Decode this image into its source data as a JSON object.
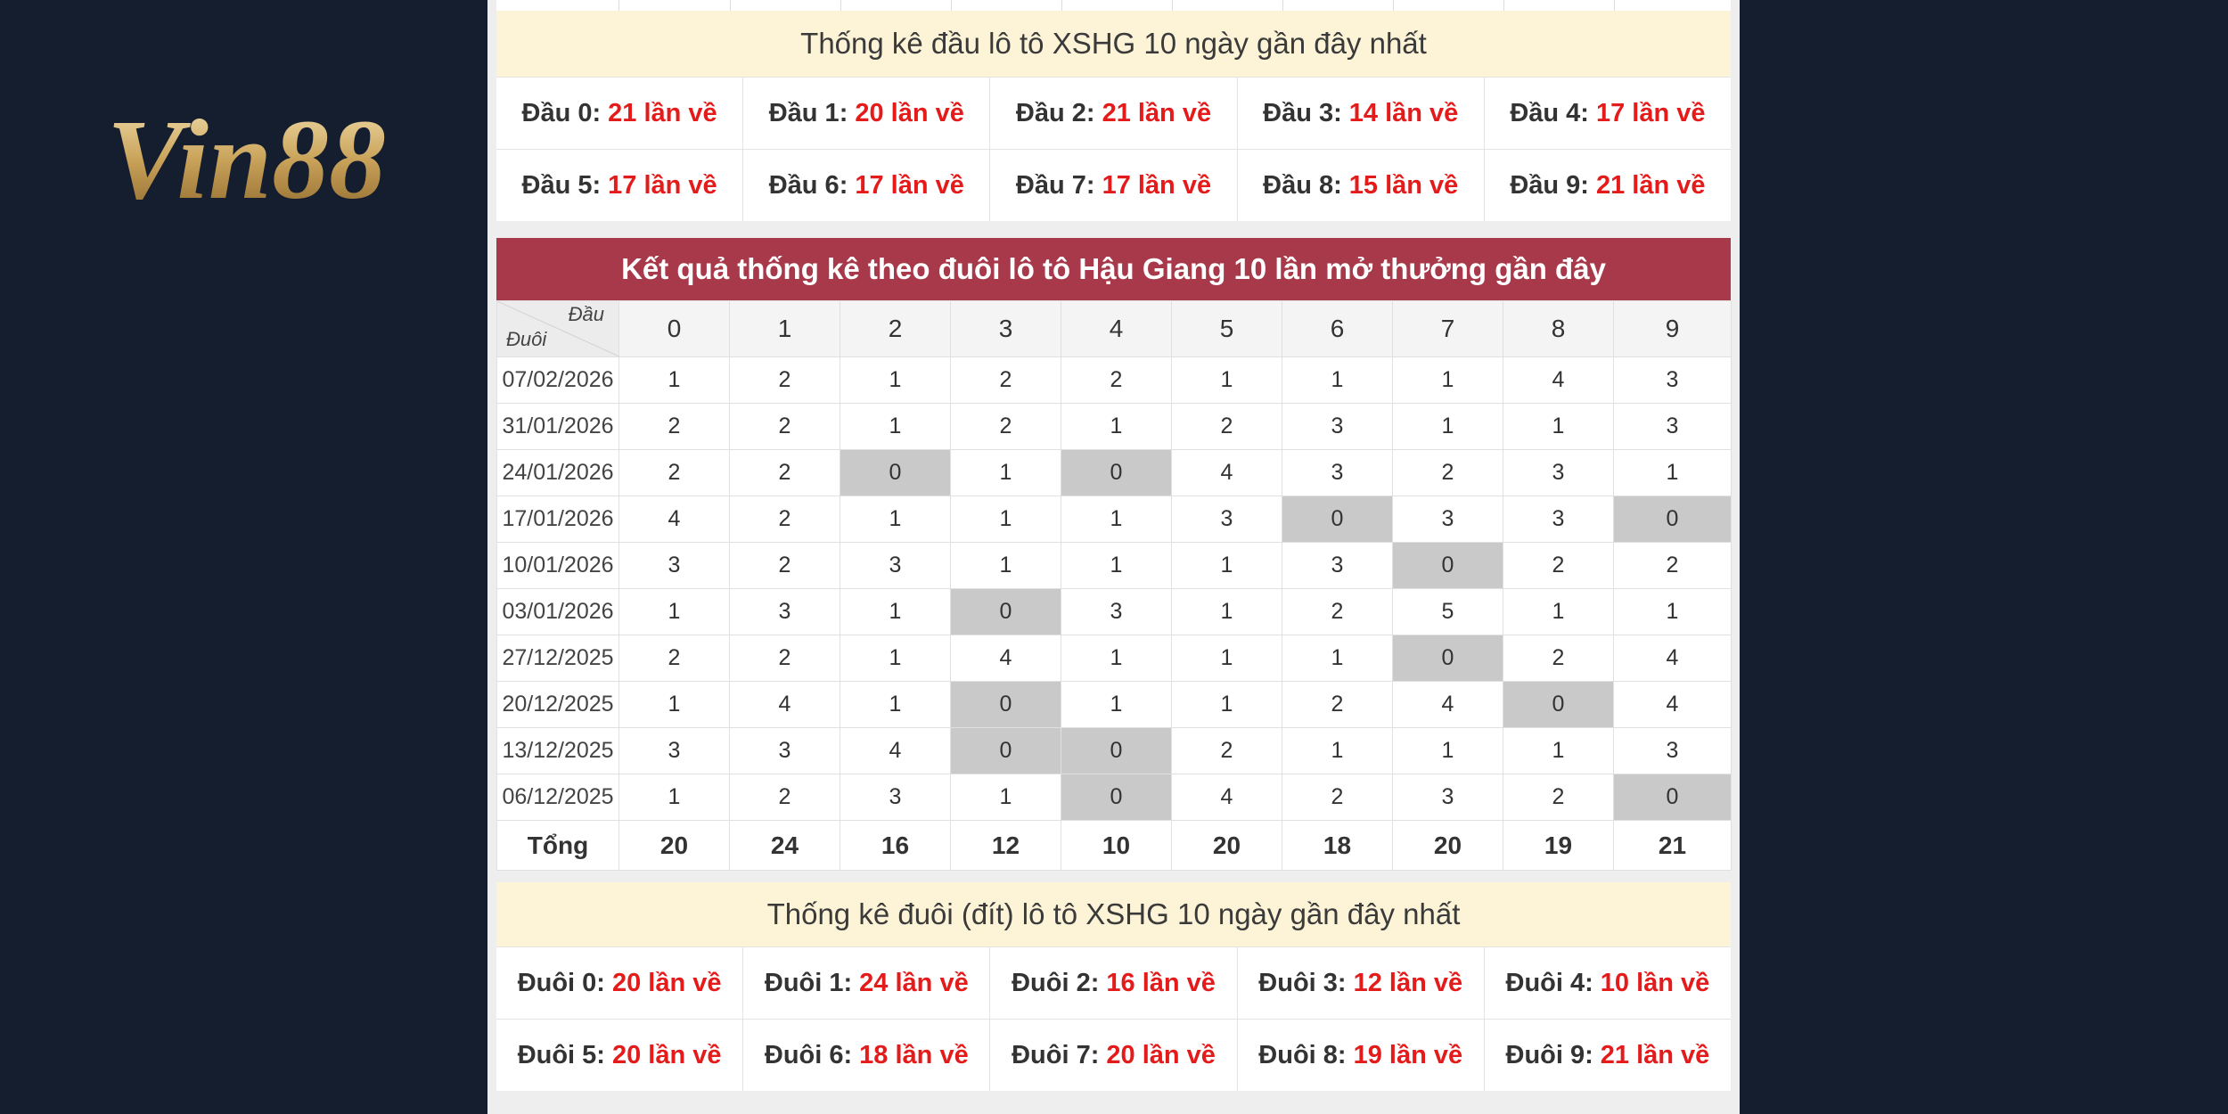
{
  "logo": {
    "text": "Vin88"
  },
  "head_stats": {
    "title": "Thống kê đầu lô tô XSHG 10 ngày gần đây nhất",
    "rows": [
      [
        {
          "label": "Đầu 0:",
          "value": "21 lần về"
        },
        {
          "label": "Đầu 1:",
          "value": "20 lần về"
        },
        {
          "label": "Đầu 2:",
          "value": "21 lần về"
        },
        {
          "label": "Đầu 3:",
          "value": "14 lần về"
        },
        {
          "label": "Đầu 4:",
          "value": "17 lần về"
        }
      ],
      [
        {
          "label": "Đầu 5:",
          "value": "17 lần về"
        },
        {
          "label": "Đầu 6:",
          "value": "17 lần về"
        },
        {
          "label": "Đầu 7:",
          "value": "17 lần về"
        },
        {
          "label": "Đầu 8:",
          "value": "15 lần về"
        },
        {
          "label": "Đầu 9:",
          "value": "21 lần về"
        }
      ]
    ]
  },
  "tail_table": {
    "title": "Kết quả thống kê theo đuôi lô tô Hậu Giang 10 lần mở thưởng gần đây",
    "corner_top": "Đầu",
    "corner_bottom": "Đuôi",
    "columns": [
      "0",
      "1",
      "2",
      "3",
      "4",
      "5",
      "6",
      "7",
      "8",
      "9"
    ],
    "rows": [
      {
        "date": "07/02/2026",
        "values": [
          "1",
          "2",
          "1",
          "2",
          "2",
          "1",
          "1",
          "1",
          "4",
          "3"
        ]
      },
      {
        "date": "31/01/2026",
        "values": [
          "2",
          "2",
          "1",
          "2",
          "1",
          "2",
          "3",
          "1",
          "1",
          "3"
        ]
      },
      {
        "date": "24/01/2026",
        "values": [
          "2",
          "2",
          "0",
          "1",
          "0",
          "4",
          "3",
          "2",
          "3",
          "1"
        ]
      },
      {
        "date": "17/01/2026",
        "values": [
          "4",
          "2",
          "1",
          "1",
          "1",
          "3",
          "0",
          "3",
          "3",
          "0"
        ]
      },
      {
        "date": "10/01/2026",
        "values": [
          "3",
          "2",
          "3",
          "1",
          "1",
          "1",
          "3",
          "0",
          "2",
          "2"
        ]
      },
      {
        "date": "03/01/2026",
        "values": [
          "1",
          "3",
          "1",
          "0",
          "3",
          "1",
          "2",
          "5",
          "1",
          "1"
        ]
      },
      {
        "date": "27/12/2025",
        "values": [
          "2",
          "2",
          "1",
          "4",
          "1",
          "1",
          "1",
          "0",
          "2",
          "4"
        ]
      },
      {
        "date": "20/12/2025",
        "values": [
          "1",
          "4",
          "1",
          "0",
          "1",
          "1",
          "2",
          "4",
          "0",
          "4"
        ]
      },
      {
        "date": "13/12/2025",
        "values": [
          "3",
          "3",
          "4",
          "0",
          "0",
          "2",
          "1",
          "1",
          "1",
          "3"
        ]
      },
      {
        "date": "06/12/2025",
        "values": [
          "1",
          "2",
          "3",
          "1",
          "0",
          "4",
          "2",
          "3",
          "2",
          "0"
        ]
      }
    ],
    "total_label": "Tổng",
    "totals": [
      "20",
      "24",
      "16",
      "12",
      "10",
      "20",
      "18",
      "20",
      "19",
      "21"
    ]
  },
  "tail_stats": {
    "title": "Thống kê đuôi (đít) lô tô XSHG 10 ngày gần đây nhất",
    "rows": [
      [
        {
          "label": "Đuôi 0:",
          "value": "20 lần về"
        },
        {
          "label": "Đuôi 1:",
          "value": "24 lần về"
        },
        {
          "label": "Đuôi 2:",
          "value": "16 lần về"
        },
        {
          "label": "Đuôi 3:",
          "value": "12 lần về"
        },
        {
          "label": "Đuôi 4:",
          "value": "10 lần về"
        }
      ],
      [
        {
          "label": "Đuôi 5:",
          "value": "20 lần về"
        },
        {
          "label": "Đuôi 6:",
          "value": "18 lần về"
        },
        {
          "label": "Đuôi 7:",
          "value": "20 lần về"
        },
        {
          "label": "Đuôi 8:",
          "value": "19 lần về"
        },
        {
          "label": "Đuôi 9:",
          "value": "21 lần về"
        }
      ]
    ]
  },
  "colors": {
    "background": "#151e2e",
    "header_red": "#a8394a",
    "title_yellow": "#fdf4d7",
    "count_red": "#e41b1b",
    "zero_gray": "#c9c9c9"
  }
}
